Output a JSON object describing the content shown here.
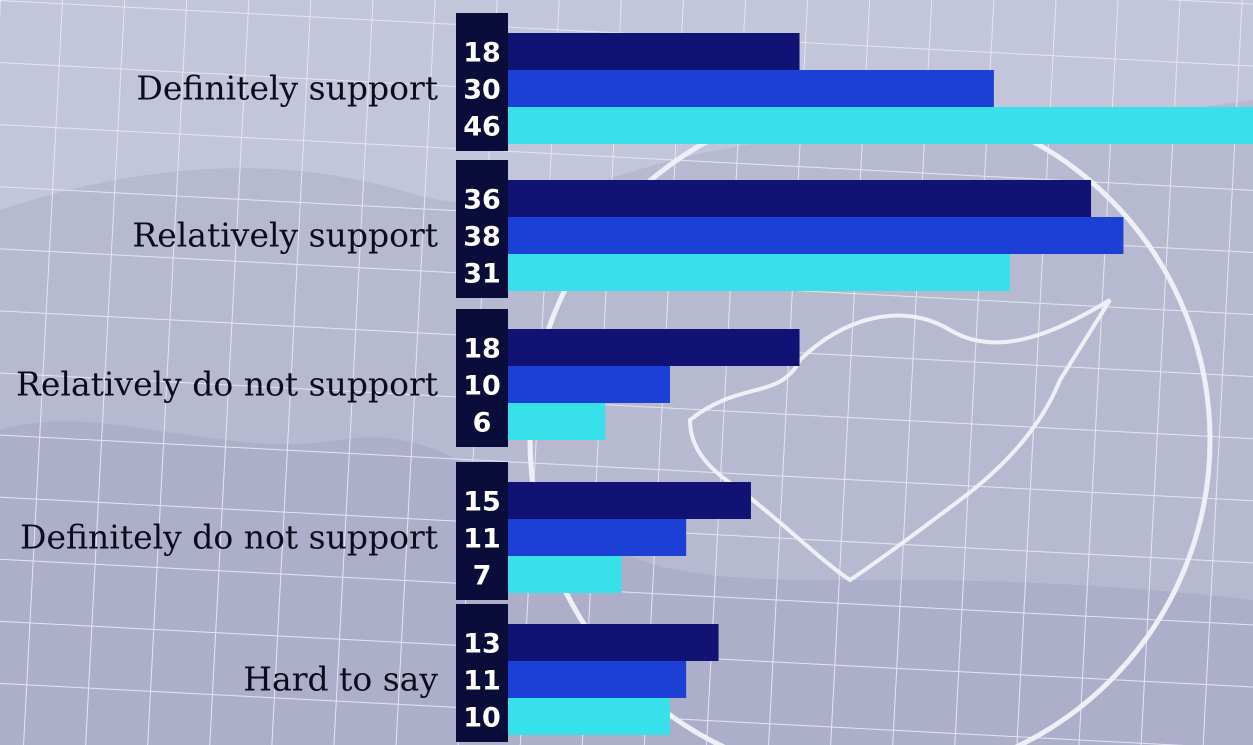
{
  "chart_data": {
    "type": "bar",
    "orientation": "horizontal",
    "categories": [
      "Definitely support",
      "Relatively support",
      "Relatively do not support",
      "Definitely do not support",
      "Hard to say"
    ],
    "series": [
      {
        "values": [
          18,
          36,
          18,
          15,
          13
        ],
        "color": "#101274"
      },
      {
        "values": [
          30,
          38,
          10,
          11,
          11
        ],
        "color": "#1c3fd6"
      },
      {
        "values": [
          46,
          31,
          6,
          7,
          10
        ],
        "color": "#38e0ea"
      }
    ],
    "xlim": [
      0,
      46
    ],
    "grid": false,
    "legend": "none",
    "label_box_color": "#0a0c3a",
    "background_color": "#c3c5da"
  }
}
